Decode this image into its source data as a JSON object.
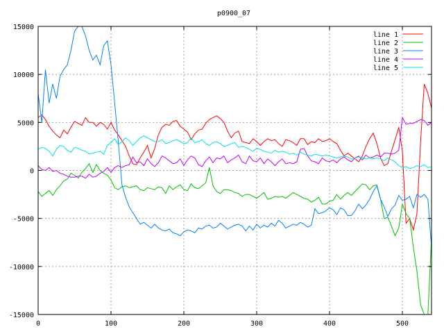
{
  "chart_data": {
    "type": "line",
    "title": "p0900_07",
    "xlabel": "",
    "ylabel": "",
    "xlim": [
      0,
      540
    ],
    "ylim": [
      -15000,
      15000
    ],
    "x_ticks": [
      0,
      100,
      200,
      300,
      400,
      500
    ],
    "y_ticks": [
      -15000,
      -10000,
      -5000,
      0,
      5000,
      10000,
      15000
    ],
    "grid": true,
    "legend": "top-right",
    "series": [
      {
        "name": "line 1",
        "color": "#ff0000",
        "x": [
          0,
          5,
          10,
          15,
          20,
          25,
          30,
          35,
          40,
          45,
          50,
          55,
          60,
          65,
          70,
          75,
          80,
          85,
          90,
          95,
          100,
          105,
          110,
          115,
          120,
          125,
          130,
          135,
          140,
          145,
          150,
          155,
          160,
          165,
          170,
          175,
          180,
          185,
          190,
          195,
          200,
          205,
          210,
          215,
          220,
          225,
          230,
          235,
          240,
          245,
          250,
          255,
          260,
          265,
          270,
          275,
          280,
          285,
          290,
          295,
          300,
          305,
          310,
          315,
          320,
          325,
          330,
          335,
          340,
          345,
          350,
          355,
          360,
          365,
          370,
          375,
          380,
          385,
          390,
          395,
          400,
          405,
          410,
          415,
          420,
          425,
          430,
          435,
          440,
          445,
          450,
          455,
          460,
          465,
          470,
          475,
          480,
          485,
          490,
          495,
          500,
          505,
          510,
          515,
          520,
          525,
          530,
          535,
          540
        ],
        "values": [
          5500,
          5800,
          5300,
          4600,
          4100,
          3700,
          3400,
          4200,
          3800,
          4500,
          5100,
          4900,
          4700,
          5500,
          5000,
          5000,
          4600,
          5000,
          4800,
          4300,
          5000,
          4200,
          3700,
          3100,
          2500,
          1500,
          700,
          600,
          1300,
          1900,
          2600,
          1300,
          2300,
          3700,
          4500,
          4800,
          4700,
          5100,
          5200,
          4600,
          4300,
          4000,
          3200,
          3800,
          4200,
          4300,
          4900,
          5300,
          5500,
          5700,
          5400,
          5000,
          4100,
          3400,
          3900,
          4100,
          3000,
          2900,
          2800,
          3300,
          3000,
          2600,
          3000,
          3300,
          3100,
          3200,
          2800,
          2500,
          3200,
          3100,
          2900,
          2600,
          3300,
          3300,
          2700,
          3000,
          2900,
          3300,
          3000,
          3100,
          3300,
          3000,
          2800,
          2100,
          1500,
          1800,
          1500,
          1200,
          900,
          1500,
          2500,
          3300,
          3900,
          2800,
          1300,
          500,
          700,
          2000,
          3200,
          4500,
          2000,
          -5500,
          -5000,
          -6200,
          -4500,
          3000,
          9000,
          8000,
          6500
        ]
      },
      {
        "name": "line 2",
        "color": "#00c000",
        "x": [
          0,
          5,
          10,
          15,
          20,
          25,
          30,
          35,
          40,
          45,
          50,
          55,
          60,
          65,
          70,
          75,
          80,
          85,
          90,
          95,
          100,
          105,
          110,
          115,
          120,
          125,
          130,
          135,
          140,
          145,
          150,
          155,
          160,
          165,
          170,
          175,
          180,
          185,
          190,
          195,
          200,
          205,
          210,
          215,
          220,
          225,
          230,
          235,
          240,
          245,
          250,
          255,
          260,
          265,
          270,
          275,
          280,
          285,
          290,
          295,
          300,
          305,
          310,
          315,
          320,
          325,
          330,
          335,
          340,
          345,
          350,
          355,
          360,
          365,
          370,
          375,
          380,
          385,
          390,
          395,
          400,
          405,
          410,
          415,
          420,
          425,
          430,
          435,
          440,
          445,
          450,
          455,
          460,
          465,
          470,
          475,
          480,
          485,
          490,
          495,
          500,
          505,
          510,
          515,
          520,
          525,
          530,
          535,
          540
        ],
        "values": [
          -2200,
          -2700,
          -2400,
          -2100,
          -2600,
          -2000,
          -1600,
          -1100,
          -900,
          -300,
          -500,
          -800,
          -200,
          200,
          700,
          -200,
          600,
          0,
          -300,
          -500,
          -1000,
          -1800,
          -2000,
          -1700,
          -1600,
          -1800,
          -1700,
          -1600,
          -2000,
          -2100,
          -1800,
          -1900,
          -2000,
          -1700,
          -1800,
          -2400,
          -1600,
          -2000,
          -1700,
          -1500,
          -2000,
          -2100,
          -1400,
          -1800,
          -1900,
          -1600,
          -1300,
          300,
          -1600,
          -2200,
          -2400,
          -2000,
          -2000,
          -2100,
          -2300,
          -2400,
          -2700,
          -2500,
          -2500,
          -2700,
          -2900,
          -2600,
          -2300,
          -3000,
          -2900,
          -2700,
          -2800,
          -2700,
          -2900,
          -2600,
          -2300,
          -2500,
          -2700,
          -2900,
          -3000,
          -3300,
          -3100,
          -2800,
          -3500,
          -3500,
          -3200,
          -3100,
          -2500,
          -3000,
          -2600,
          -2300,
          -2600,
          -2200,
          -1800,
          -1400,
          -1500,
          -2000,
          -1600,
          -1500,
          -3000,
          -5000,
          -4900,
          -5800,
          -6800,
          -6000,
          -3500,
          -4500,
          -5000,
          -8000,
          -10500,
          -14000,
          -15000,
          -15000,
          -7000
        ]
      },
      {
        "name": "line 3",
        "color": "#0080ff",
        "x": [
          0,
          5,
          10,
          15,
          20,
          25,
          30,
          35,
          40,
          45,
          50,
          55,
          60,
          65,
          70,
          75,
          80,
          85,
          90,
          95,
          100,
          105,
          110,
          115,
          120,
          125,
          130,
          135,
          140,
          145,
          150,
          155,
          160,
          165,
          170,
          175,
          180,
          185,
          190,
          195,
          200,
          205,
          210,
          215,
          220,
          225,
          230,
          235,
          240,
          245,
          250,
          255,
          260,
          265,
          270,
          275,
          280,
          285,
          290,
          295,
          300,
          305,
          310,
          315,
          320,
          325,
          330,
          335,
          340,
          345,
          350,
          355,
          360,
          365,
          370,
          375,
          380,
          385,
          390,
          395,
          400,
          405,
          410,
          415,
          420,
          425,
          430,
          435,
          440,
          445,
          450,
          455,
          460,
          465,
          470,
          475,
          480,
          485,
          490,
          495,
          500,
          505,
          510,
          515,
          520,
          525,
          530,
          535,
          540
        ],
        "values": [
          8000,
          5000,
          10500,
          7000,
          9000,
          7500,
          9800,
          10500,
          11000,
          12500,
          14500,
          15000,
          15000,
          14000,
          12500,
          11500,
          12000,
          11000,
          13000,
          13500,
          11000,
          7000,
          3000,
          -1500,
          -2800,
          -3800,
          -4400,
          -5000,
          -5600,
          -5400,
          -5700,
          -6000,
          -5600,
          -6000,
          -6200,
          -6300,
          -6100,
          -6500,
          -6600,
          -6800,
          -6400,
          -6200,
          -6300,
          -6500,
          -6000,
          -6100,
          -5800,
          -5700,
          -6000,
          -5900,
          -5500,
          -5800,
          -6100,
          -5900,
          -5700,
          -5600,
          -5800,
          -6300,
          -5800,
          -6200,
          -5600,
          -6000,
          -5700,
          -5900,
          -5500,
          -5800,
          -5200,
          -5500,
          -6000,
          -5800,
          -5600,
          -5700,
          -5400,
          -5600,
          -5900,
          -5700,
          -4000,
          -4500,
          -4400,
          -4200,
          -3900,
          -4100,
          -4600,
          -3900,
          -4100,
          -4700,
          -4700,
          -4200,
          -3500,
          -4000,
          -3600,
          -3000,
          -2200,
          -1600,
          -3000,
          -3800,
          -4800,
          -4000,
          -3600,
          -2600,
          -3100,
          -3000,
          -2700,
          -3900,
          -2500,
          -2800,
          -2500,
          -3000,
          -8000
        ]
      },
      {
        "name": "line 4",
        "color": "#c000ff",
        "x": [
          0,
          5,
          10,
          15,
          20,
          25,
          30,
          35,
          40,
          45,
          50,
          55,
          60,
          65,
          70,
          75,
          80,
          85,
          90,
          95,
          100,
          105,
          110,
          115,
          120,
          125,
          130,
          135,
          140,
          145,
          150,
          155,
          160,
          165,
          170,
          175,
          180,
          185,
          190,
          195,
          200,
          205,
          210,
          215,
          220,
          225,
          230,
          235,
          240,
          245,
          250,
          255,
          260,
          265,
          270,
          275,
          280,
          285,
          290,
          295,
          300,
          305,
          310,
          315,
          320,
          325,
          330,
          335,
          340,
          345,
          350,
          355,
          360,
          365,
          370,
          375,
          380,
          385,
          390,
          395,
          400,
          405,
          410,
          415,
          420,
          425,
          430,
          435,
          440,
          445,
          450,
          455,
          460,
          465,
          470,
          475,
          480,
          485,
          490,
          495,
          500,
          505,
          510,
          515,
          520,
          525,
          530,
          535,
          540
        ],
        "values": [
          500,
          100,
          0,
          300,
          -100,
          0,
          -300,
          -400,
          -600,
          -700,
          -700,
          -600,
          -600,
          -800,
          -400,
          -700,
          -600,
          -300,
          -100,
          300,
          -200,
          300,
          500,
          300,
          500,
          600,
          1400,
          800,
          900,
          500,
          1200,
          700,
          400,
          800,
          1500,
          1300,
          1000,
          700,
          800,
          1200,
          500,
          1100,
          1500,
          1300,
          600,
          400,
          1000,
          1400,
          800,
          1300,
          1200,
          1500,
          800,
          1100,
          1300,
          1600,
          900,
          700,
          1500,
          1000,
          900,
          1300,
          700,
          1200,
          900,
          500,
          900,
          1200,
          700,
          800,
          700,
          900,
          2200,
          2300,
          1500,
          1000,
          900,
          700,
          1300,
          1000,
          900,
          1100,
          800,
          1200,
          1400,
          1100,
          900,
          1300,
          1500,
          1100,
          1600,
          1300,
          1400,
          1600,
          1400,
          1800,
          1800,
          1700,
          1800,
          2100,
          5500,
          4800,
          4900,
          4900,
          5100,
          5300,
          5200,
          4700,
          5000
        ]
      },
      {
        "name": "line 5",
        "color": "#00e0e0",
        "x": [
          0,
          5,
          10,
          15,
          20,
          25,
          30,
          35,
          40,
          45,
          50,
          55,
          60,
          65,
          70,
          75,
          80,
          85,
          90,
          95,
          100,
          105,
          110,
          115,
          120,
          125,
          130,
          135,
          140,
          145,
          150,
          155,
          160,
          165,
          170,
          175,
          180,
          185,
          190,
          195,
          200,
          205,
          210,
          215,
          220,
          225,
          230,
          235,
          240,
          245,
          250,
          255,
          260,
          265,
          270,
          275,
          280,
          285,
          290,
          295,
          300,
          305,
          310,
          315,
          320,
          325,
          330,
          335,
          340,
          345,
          350,
          355,
          360,
          365,
          370,
          375,
          380,
          385,
          390,
          395,
          400,
          405,
          410,
          415,
          420,
          425,
          430,
          435,
          440,
          445,
          450,
          455,
          460,
          465,
          470,
          475,
          480,
          485,
          490,
          495,
          500,
          505,
          510,
          515,
          520,
          525,
          530,
          535,
          540
        ],
        "values": [
          2200,
          2400,
          2300,
          2000,
          1500,
          2200,
          2600,
          2500,
          2100,
          1900,
          2400,
          2300,
          2100,
          2000,
          1700,
          1800,
          1900,
          2000,
          1700,
          2600,
          2900,
          3300,
          2700,
          3000,
          3400,
          3100,
          2600,
          3000,
          3400,
          3600,
          3400,
          3200,
          3000,
          3000,
          3200,
          2800,
          2900,
          3100,
          3200,
          3000,
          2800,
          2900,
          3400,
          2900,
          3000,
          3200,
          2800,
          2600,
          2900,
          3000,
          2800,
          2500,
          2600,
          2800,
          2900,
          2400,
          2500,
          2400,
          2200,
          2000,
          2300,
          2200,
          2000,
          1900,
          1800,
          2100,
          1900,
          2000,
          1900,
          1700,
          1800,
          1600,
          1900,
          1700,
          1600,
          1500,
          1700,
          1600,
          1500,
          1600,
          1500,
          1400,
          1300,
          1400,
          1500,
          1400,
          1200,
          1300,
          1400,
          1300,
          1200,
          1300,
          1200,
          1300,
          1200,
          1000,
          1300,
          1100,
          900,
          500,
          300,
          400,
          200,
          300,
          500,
          400,
          600,
          300,
          400
        ]
      }
    ]
  }
}
